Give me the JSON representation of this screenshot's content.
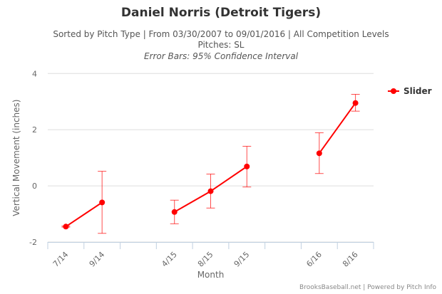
{
  "title": "Daniel Norris (Detroit Tigers)",
  "subtitle_lines": [
    "Sorted by Pitch Type | From 03/30/2007 to 09/01/2016 | All Competition Levels",
    "Pitches: SL",
    "Error Bars: 95% Confidence Interval"
  ],
  "footer": "BrooksBaseball.net | Powered by Pitch Info",
  "chart_data": {
    "type": "line",
    "xlabel": "Month",
    "ylabel": "Vertical Movement (inches)",
    "ylim": [
      -2,
      4
    ],
    "yticks": [
      -2,
      0,
      2,
      4
    ],
    "grid": true,
    "legend_placement": "right",
    "categories": [
      "7/14",
      "9/14",
      "",
      "4/15",
      "8/15",
      "9/15",
      "",
      "6/16",
      "8/16"
    ],
    "series": [
      {
        "name": "Slider",
        "color": "#ff0000",
        "values": [
          -1.45,
          -0.59,
          null,
          -0.93,
          -0.19,
          0.69,
          null,
          1.16,
          2.95
        ],
        "error_low": [
          -1.47,
          -1.69,
          null,
          -1.35,
          -0.79,
          -0.04,
          null,
          0.44,
          2.66
        ],
        "error_high": [
          -1.43,
          0.52,
          null,
          -0.51,
          0.42,
          1.41,
          null,
          1.89,
          3.26
        ]
      }
    ]
  }
}
